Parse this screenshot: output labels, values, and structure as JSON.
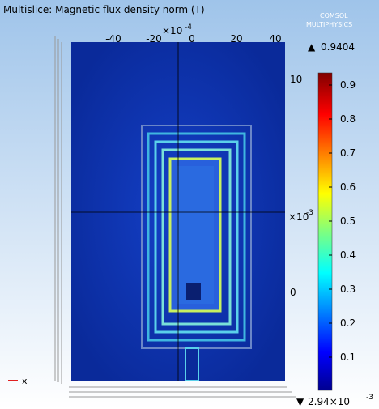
{
  "title": "Multislice: Magnetic flux density norm (T)",
  "logo": {
    "line1": "COMSOL",
    "line2": "MULTIPHYSICS"
  },
  "max_label": "0.9404",
  "min_label": {
    "text": "2.94×10",
    "exponent": "-3"
  },
  "top_axis": {
    "ticks": [
      "-40",
      "-20",
      "0",
      "20",
      "40"
    ],
    "scale": "×10",
    "exponent": "-4"
  },
  "right_axis": {
    "top": "10",
    "scale": "×10",
    "exponent": "-3",
    "bottom": "0"
  },
  "colorbar_ticks": [
    "0.9",
    "0.8",
    "0.7",
    "0.6",
    "0.5",
    "0.4",
    "0.3",
    "0.2",
    "0.1"
  ],
  "axis_label": "x"
}
